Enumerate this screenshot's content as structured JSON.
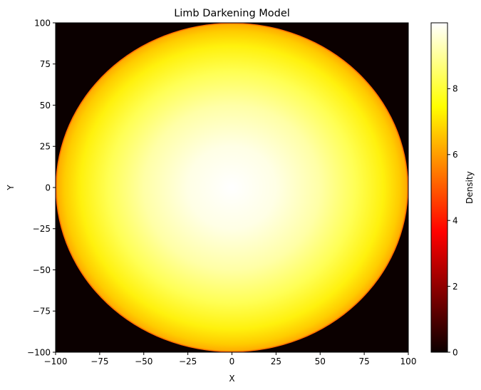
{
  "chart_data": {
    "type": "heatmap",
    "title": "Limb Darkening Model",
    "xlabel": "X",
    "ylabel": "Y",
    "xlim": [
      -100,
      100
    ],
    "ylim": [
      -100,
      100
    ],
    "x_ticks": [
      -100,
      -75,
      -50,
      -25,
      0,
      25,
      50,
      75,
      100
    ],
    "y_ticks": [
      -100,
      -75,
      -50,
      -25,
      0,
      25,
      50,
      75,
      100
    ],
    "x_tick_labels": [
      "−100",
      "−75",
      "−50",
      "−25",
      "0",
      "25",
      "50",
      "75",
      "100"
    ],
    "y_tick_labels": [
      "−100",
      "−75",
      "−50",
      "−25",
      "0",
      "25",
      "50",
      "75",
      "100"
    ],
    "disk": {
      "center": [
        0,
        0
      ],
      "radius": 100,
      "center_value": 10,
      "limb_value": 6,
      "background_value": 0
    },
    "colormap": "hot",
    "grid": false,
    "colorbar": {
      "label": "Density",
      "range": [
        0,
        10
      ],
      "ticks": [
        0,
        2,
        4,
        6,
        8
      ],
      "tick_labels": [
        "0",
        "2",
        "4",
        "6",
        "8"
      ]
    }
  }
}
